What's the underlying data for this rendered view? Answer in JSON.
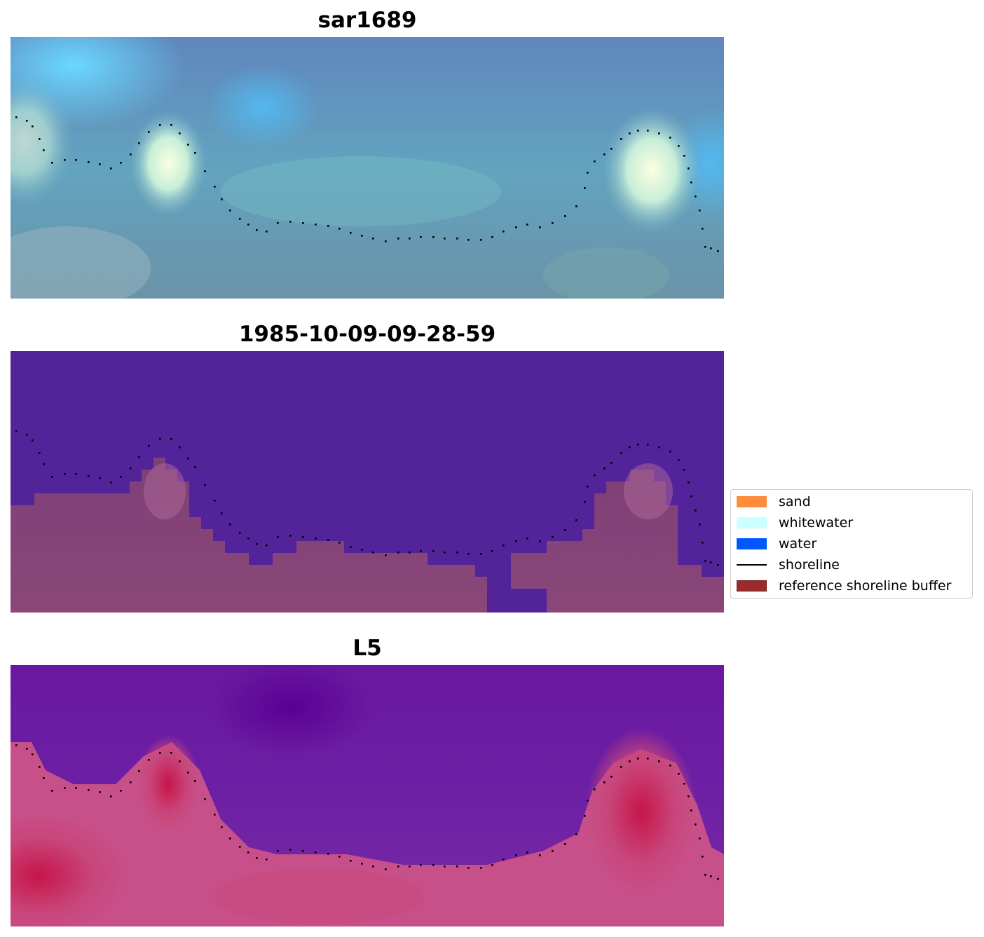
{
  "panels": [
    {
      "title": "sar1689"
    },
    {
      "title": "1985-10-09-09-28-59"
    },
    {
      "title": "L5"
    }
  ],
  "legend": {
    "items": [
      {
        "label": "sand",
        "color": "#ff8c3a",
        "kind": "patch"
      },
      {
        "label": "whitewater",
        "color": "#ccffff",
        "kind": "patch"
      },
      {
        "label": "water",
        "color": "#0057ff",
        "kind": "patch"
      },
      {
        "label": "shoreline",
        "color": "#000000",
        "kind": "line"
      },
      {
        "label": "reference shoreline buffer",
        "color": "#9b2b2b",
        "kind": "patch"
      }
    ]
  },
  "colors": {
    "sar_base": "#5b93b8",
    "classification_water": "#53239a",
    "classification_buffer": "#7a3c73",
    "l5_upper": "#6a1aa0",
    "l5_lower": "#c7386a"
  }
}
